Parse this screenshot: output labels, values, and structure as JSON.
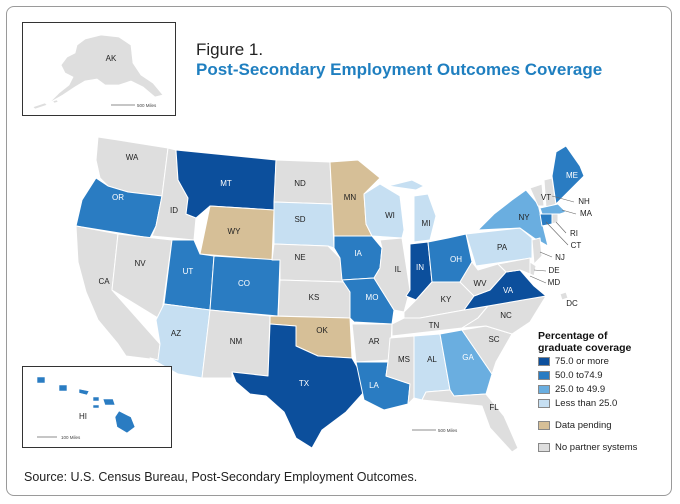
{
  "figure_label": "Figure 1.",
  "title": "Post-Secondary Employment Outcomes Coverage",
  "source": "Source: U.S. Census Bureau, Post-Secondary Employment Outcomes.",
  "legend": {
    "title": "Percentage of graduate coverage",
    "items": [
      {
        "label": "75.0 or more",
        "color": "#0c4f9c"
      },
      {
        "label": "50.0 to74.9",
        "color": "#2a7cc2"
      },
      {
        "label": "25.0 to 49.9",
        "color": "#6aaee0"
      },
      {
        "label": "Less than 25.0",
        "color": "#c6dff2"
      }
    ],
    "pending": {
      "label": "Data pending",
      "color": "#d6bf97"
    },
    "none": {
      "label": "No partner systems",
      "color": "#dedede"
    }
  },
  "insets": {
    "alaska": {
      "label": "AK",
      "scale": "500 Miles"
    },
    "hawaii": {
      "label": "HI",
      "scale": "100 Miles"
    }
  },
  "main_scale": "500 Miles",
  "states": [
    {
      "abbr": "WA",
      "category": "none"
    },
    {
      "abbr": "OR",
      "category": "50-74.9"
    },
    {
      "abbr": "CA",
      "category": "none"
    },
    {
      "abbr": "ID",
      "category": "none"
    },
    {
      "abbr": "NV",
      "category": "none"
    },
    {
      "abbr": "MT",
      "category": "75+"
    },
    {
      "abbr": "WY",
      "category": "pending"
    },
    {
      "abbr": "UT",
      "category": "50-74.9"
    },
    {
      "abbr": "AZ",
      "category": "lt25"
    },
    {
      "abbr": "CO",
      "category": "50-74.9"
    },
    {
      "abbr": "NM",
      "category": "none"
    },
    {
      "abbr": "ND",
      "category": "none"
    },
    {
      "abbr": "SD",
      "category": "lt25"
    },
    {
      "abbr": "NE",
      "category": "none"
    },
    {
      "abbr": "KS",
      "category": "none"
    },
    {
      "abbr": "OK",
      "category": "pending"
    },
    {
      "abbr": "TX",
      "category": "75+"
    },
    {
      "abbr": "MN",
      "category": "pending"
    },
    {
      "abbr": "IA",
      "category": "50-74.9"
    },
    {
      "abbr": "MO",
      "category": "50-74.9"
    },
    {
      "abbr": "AR",
      "category": "none"
    },
    {
      "abbr": "LA",
      "category": "50-74.9"
    },
    {
      "abbr": "WI",
      "category": "lt25"
    },
    {
      "abbr": "IL",
      "category": "none"
    },
    {
      "abbr": "MI",
      "category": "lt25"
    },
    {
      "abbr": "IN",
      "category": "75+"
    },
    {
      "abbr": "OH",
      "category": "50-74.9"
    },
    {
      "abbr": "KY",
      "category": "none"
    },
    {
      "abbr": "TN",
      "category": "none"
    },
    {
      "abbr": "MS",
      "category": "none"
    },
    {
      "abbr": "AL",
      "category": "lt25"
    },
    {
      "abbr": "GA",
      "category": "25-49.9"
    },
    {
      "abbr": "FL",
      "category": "none"
    },
    {
      "abbr": "SC",
      "category": "none"
    },
    {
      "abbr": "NC",
      "category": "none"
    },
    {
      "abbr": "VA",
      "category": "75+"
    },
    {
      "abbr": "WV",
      "category": "none"
    },
    {
      "abbr": "PA",
      "category": "lt25"
    },
    {
      "abbr": "NY",
      "category": "25-49.9"
    },
    {
      "abbr": "VT",
      "category": "none"
    },
    {
      "abbr": "NH",
      "category": "none"
    },
    {
      "abbr": "ME",
      "category": "50-74.9"
    },
    {
      "abbr": "MA",
      "category": "25-49.9"
    },
    {
      "abbr": "RI",
      "category": "none"
    },
    {
      "abbr": "CT",
      "category": "50-74.9"
    },
    {
      "abbr": "NJ",
      "category": "none"
    },
    {
      "abbr": "DE",
      "category": "none"
    },
    {
      "abbr": "MD",
      "category": "none"
    },
    {
      "abbr": "DC",
      "category": "none"
    },
    {
      "abbr": "AK",
      "category": "none"
    },
    {
      "abbr": "HI",
      "category": "50-74.9"
    }
  ]
}
